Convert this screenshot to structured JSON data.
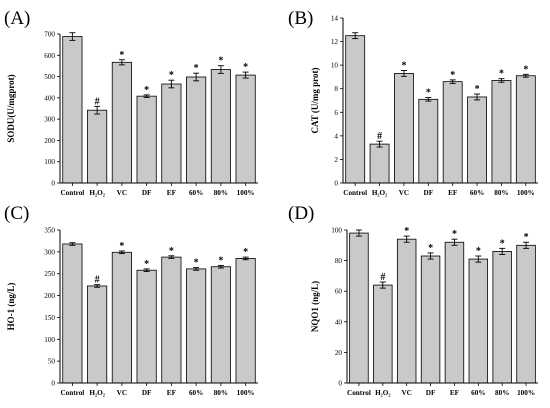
{
  "chart_data": [
    {
      "type": "bar",
      "panel_label": "(A)",
      "ylabel": "SODU(U/mgprot)",
      "categories": [
        "Control",
        "H₂O₂",
        "VC",
        "DF",
        "EF",
        "60%",
        "80%",
        "100%"
      ],
      "values": [
        688,
        342,
        567,
        408,
        465,
        498,
        533,
        507
      ],
      "errors": [
        18,
        18,
        12,
        6,
        18,
        18,
        18,
        14
      ],
      "marks": [
        "",
        "#",
        "*",
        "*",
        "*",
        "*",
        "*",
        "*"
      ],
      "ylim": [
        0,
        700
      ],
      "yticks": [
        "0",
        "100",
        "200",
        "300",
        "400",
        "500",
        "600",
        "700"
      ]
    },
    {
      "type": "bar",
      "panel_label": "(B)",
      "ylabel": "CAT (U/mg prot)",
      "categories": [
        "Control",
        "H₂O₂",
        "VC",
        "DF",
        "EF",
        "60%",
        "80%",
        "100%"
      ],
      "values": [
        12.5,
        3.3,
        9.3,
        7.1,
        8.6,
        7.3,
        8.7,
        9.1
      ],
      "errors": [
        0.25,
        0.25,
        0.25,
        0.15,
        0.15,
        0.25,
        0.15,
        0.12
      ],
      "marks": [
        "",
        "#",
        "*",
        "*",
        "*",
        "*",
        "*",
        "*"
      ],
      "ylim": [
        0,
        14
      ],
      "yticks": [
        "0",
        "2",
        "4",
        "6",
        "8",
        "10",
        "12",
        "14"
      ]
    },
    {
      "type": "bar",
      "panel_label": "(C)",
      "ylabel": "HO-1 (ng/L)",
      "categories": [
        "Control",
        "H₂O₂",
        "VC",
        "DF",
        "EF",
        "60%",
        "80%",
        "100%"
      ],
      "values": [
        318,
        222,
        299,
        258,
        288,
        261,
        266,
        285
      ],
      "errors": [
        3,
        3,
        3,
        3,
        3,
        3,
        3,
        3
      ],
      "marks": [
        "",
        "#",
        "*",
        "*",
        "*",
        "*",
        "*",
        "*"
      ],
      "ylim": [
        0,
        350
      ],
      "yticks": [
        "0",
        "50",
        "100",
        "150",
        "200",
        "250",
        "300",
        "350"
      ]
    },
    {
      "type": "bar",
      "panel_label": "(D)",
      "ylabel": "NQO1 (ng/L)",
      "categories": [
        "Control",
        "H₂O₂",
        "VC",
        "DF",
        "EF",
        "60%",
        "80%",
        "100%"
      ],
      "values": [
        98,
        64,
        94,
        83,
        92,
        81,
        86,
        90
      ],
      "errors": [
        2,
        2,
        2,
        2,
        2,
        2,
        2,
        2
      ],
      "marks": [
        "",
        "#",
        "*",
        "*",
        "*",
        "*",
        "*",
        "*"
      ],
      "ylim": [
        0,
        100
      ],
      "yticks": [
        "0",
        "20",
        "40",
        "60",
        "80",
        "100"
      ]
    }
  ],
  "colors": {
    "bar_fill": "#c9c9c9",
    "bar_stroke": "#000000"
  }
}
